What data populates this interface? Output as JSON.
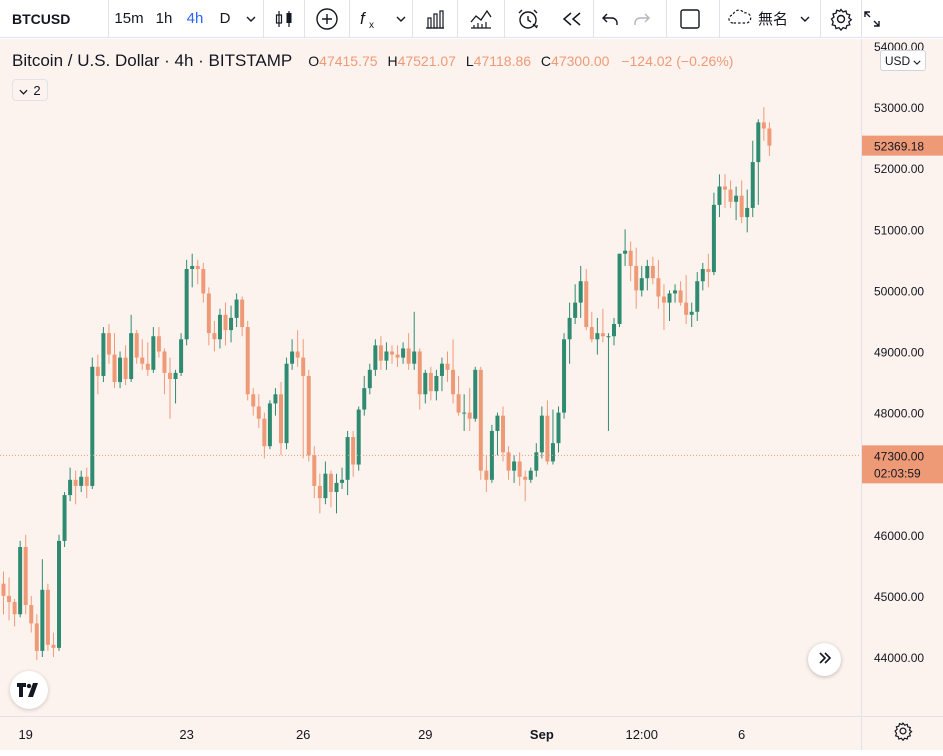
{
  "toolbar": {
    "symbol": "BTCUSD",
    "intervals": [
      "15m",
      "1h",
      "4h",
      "D"
    ],
    "active_interval": "4h",
    "layout_name": "無名"
  },
  "legend": {
    "title": "Bitcoin / U.S. Dollar · 4h · BITSTAMP",
    "o_label": "O",
    "o": "47415.75",
    "h_label": "H",
    "h": "47521.07",
    "l_label": "L",
    "l": "47118.86",
    "c_label": "C",
    "c": "47300.00",
    "change": "−124.02 (−0.26%)",
    "collapsed_count": "2"
  },
  "currency": "USD",
  "price_labels": {
    "last": "52369.18",
    "crosshair_price": "47300.00",
    "countdown": "02:03:59"
  },
  "colors": {
    "up": "#26a69a",
    "up_dark": "#2e8b72",
    "down": "#ef9a77",
    "background": "#fdf3ee",
    "active": "#2962ff"
  },
  "chart_data": {
    "type": "candlestick",
    "title": "Bitcoin / U.S. Dollar",
    "interval": "4h",
    "exchange": "BITSTAMP",
    "ylim": [
      43000,
      54300
    ],
    "y_ticks": [
      "54000.00",
      "53000.00",
      "52000.00",
      "51000.00",
      "50000.00",
      "49000.00",
      "48000.00",
      "47000.00",
      "46000.00",
      "45000.00",
      "44000.00"
    ],
    "x_ticks": [
      "19",
      "23",
      "26",
      "29",
      "Sep",
      "12:00",
      "6"
    ],
    "x_tick_bar_index": [
      4,
      33,
      54,
      76,
      97,
      115,
      133
    ],
    "candles": [
      [
        45200,
        45400,
        44700,
        45000
      ],
      [
        45000,
        45300,
        44600,
        44900
      ],
      [
        44900,
        44950,
        44500,
        44700
      ],
      [
        44700,
        45900,
        44650,
        45800
      ],
      [
        45800,
        46000,
        44700,
        44850
      ],
      [
        44850,
        45000,
        44400,
        44550
      ],
      [
        44550,
        44700,
        43950,
        44100
      ],
      [
        44100,
        45600,
        44000,
        45100
      ],
      [
        45100,
        45200,
        44100,
        44200
      ],
      [
        44200,
        44400,
        44000,
        44150
      ],
      [
        44150,
        46000,
        44100,
        45900
      ],
      [
        45900,
        46700,
        45800,
        46650
      ],
      [
        46650,
        47100,
        46550,
        46900
      ],
      [
        46900,
        47050,
        46500,
        46800
      ],
      [
        46800,
        47050,
        46700,
        46950
      ],
      [
        46950,
        47100,
        46600,
        46800
      ],
      [
        46800,
        48900,
        46750,
        48750
      ],
      [
        48750,
        48950,
        48300,
        48600
      ],
      [
        48600,
        49400,
        48500,
        49300
      ],
      [
        49300,
        49450,
        48800,
        48950
      ],
      [
        48950,
        49300,
        48400,
        48500
      ],
      [
        48500,
        49000,
        48400,
        48900
      ],
      [
        48900,
        49100,
        48450,
        48550
      ],
      [
        48550,
        49600,
        48500,
        49300
      ],
      [
        49300,
        49350,
        48800,
        48900
      ],
      [
        48900,
        49200,
        48700,
        48800
      ],
      [
        48800,
        49150,
        48600,
        48700
      ],
      [
        48700,
        49400,
        48650,
        49250
      ],
      [
        49250,
        49400,
        48900,
        49000
      ],
      [
        49000,
        49050,
        48300,
        48650
      ],
      [
        48650,
        48900,
        47900,
        48550
      ],
      [
        48550,
        48700,
        48150,
        48650
      ],
      [
        48650,
        49300,
        48600,
        49200
      ],
      [
        49200,
        50500,
        49100,
        50350
      ],
      [
        50350,
        50600,
        50050,
        50400
      ],
      [
        50400,
        50500,
        50100,
        50350
      ],
      [
        50350,
        50450,
        49800,
        49950
      ],
      [
        49950,
        50050,
        49100,
        49300
      ],
      [
        49300,
        49500,
        49000,
        49200
      ],
      [
        49200,
        49700,
        49050,
        49600
      ],
      [
        49600,
        49800,
        49100,
        49350
      ],
      [
        49350,
        49750,
        49150,
        49550
      ],
      [
        49550,
        49950,
        49400,
        49850
      ],
      [
        49850,
        49900,
        49250,
        49400
      ],
      [
        49400,
        49500,
        48200,
        48300
      ],
      [
        48300,
        48400,
        47950,
        48100
      ],
      [
        48100,
        48300,
        47750,
        47900
      ],
      [
        47900,
        48000,
        47250,
        47450
      ],
      [
        47450,
        48200,
        47400,
        48150
      ],
      [
        48150,
        48400,
        47950,
        48300
      ],
      [
        48300,
        48500,
        47300,
        47500
      ],
      [
        47500,
        48900,
        47400,
        48800
      ],
      [
        48800,
        49200,
        48700,
        49000
      ],
      [
        49000,
        49350,
        48750,
        48900
      ],
      [
        48900,
        49200,
        47250,
        48600
      ],
      [
        48600,
        48700,
        47200,
        47300
      ],
      [
        47300,
        47450,
        46600,
        46800
      ],
      [
        46800,
        47000,
        46350,
        46600
      ],
      [
        46600,
        47200,
        46500,
        47000
      ],
      [
        47000,
        47050,
        46450,
        46700
      ],
      [
        46700,
        47000,
        46350,
        46850
      ],
      [
        46850,
        47100,
        46750,
        46900
      ],
      [
        46900,
        47700,
        46650,
        47600
      ],
      [
        47600,
        47700,
        46950,
        47150
      ],
      [
        47150,
        48100,
        47050,
        48050
      ],
      [
        48050,
        48600,
        47950,
        48400
      ],
      [
        48400,
        48800,
        48300,
        48700
      ],
      [
        48700,
        49200,
        48600,
        49100
      ],
      [
        49100,
        49250,
        48700,
        48850
      ],
      [
        48850,
        49150,
        48700,
        49000
      ],
      [
        49000,
        49100,
        48800,
        48950
      ],
      [
        48950,
        49100,
        48750,
        48900
      ],
      [
        48900,
        49150,
        48800,
        49050
      ],
      [
        49050,
        49300,
        48700,
        48800
      ],
      [
        48800,
        49650,
        48700,
        49000
      ],
      [
        49000,
        49050,
        48050,
        48300
      ],
      [
        48300,
        48700,
        48150,
        48650
      ],
      [
        48650,
        48750,
        48200,
        48350
      ],
      [
        48350,
        48700,
        48200,
        48600
      ],
      [
        48600,
        48900,
        48350,
        48800
      ],
      [
        48800,
        49000,
        48500,
        48700
      ],
      [
        48700,
        49200,
        48150,
        48300
      ],
      [
        48300,
        48600,
        47950,
        48000
      ],
      [
        48000,
        48300,
        47700,
        48000
      ],
      [
        48000,
        48400,
        47700,
        47900
      ],
      [
        47900,
        48750,
        47850,
        48700
      ],
      [
        48700,
        48750,
        46900,
        47050
      ],
      [
        47050,
        47300,
        46700,
        46900
      ],
      [
        46900,
        47800,
        46850,
        47700
      ],
      [
        47700,
        48000,
        47300,
        47950
      ],
      [
        47950,
        48100,
        47200,
        47350
      ],
      [
        47350,
        47450,
        46900,
        47050
      ],
      [
        47050,
        47300,
        46850,
        47200
      ],
      [
        47200,
        47350,
        46800,
        46950
      ],
      [
        46950,
        47050,
        46550,
        46900
      ],
      [
        46900,
        47100,
        46850,
        47050
      ],
      [
        47050,
        47500,
        46950,
        47350
      ],
      [
        47350,
        48100,
        47250,
        47950
      ],
      [
        47950,
        48200,
        47150,
        47200
      ],
      [
        47200,
        48050,
        47150,
        47500
      ],
      [
        47500,
        48100,
        47350,
        48000
      ],
      [
        48000,
        49300,
        47900,
        49200
      ],
      [
        49200,
        49800,
        48800,
        49550
      ],
      [
        49550,
        50100,
        49450,
        49800
      ],
      [
        49800,
        50400,
        49550,
        50150
      ],
      [
        50150,
        50350,
        49350,
        49400
      ],
      [
        49400,
        49650,
        49150,
        49200
      ],
      [
        49200,
        49550,
        48950,
        49300
      ],
      [
        49300,
        49700,
        49150,
        49250
      ],
      [
        49250,
        49300,
        47700,
        49250
      ],
      [
        49250,
        49550,
        49100,
        49450
      ],
      [
        49450,
        50600,
        49400,
        50600
      ],
      [
        50600,
        51000,
        50400,
        50650
      ],
      [
        50650,
        50800,
        50150,
        50400
      ],
      [
        50400,
        50700,
        49700,
        50000
      ],
      [
        50000,
        50400,
        49900,
        50200
      ],
      [
        50200,
        50500,
        50000,
        50400
      ],
      [
        50400,
        50550,
        50100,
        50200
      ],
      [
        50200,
        50500,
        49700,
        49900
      ],
      [
        49900,
        50100,
        49350,
        49800
      ],
      [
        49800,
        50000,
        49500,
        49950
      ],
      [
        49950,
        50100,
        49800,
        50000
      ],
      [
        50000,
        50150,
        49750,
        49800
      ],
      [
        49800,
        50250,
        49450,
        49600
      ],
      [
        49600,
        49800,
        49400,
        49650
      ],
      [
        49650,
        50300,
        49500,
        50150
      ],
      [
        50150,
        50450,
        50000,
        50350
      ],
      [
        50350,
        50600,
        50050,
        50300
      ],
      [
        50300,
        51600,
        50250,
        51400
      ],
      [
        51400,
        51900,
        51200,
        51700
      ],
      [
        51700,
        51900,
        51350,
        51650
      ],
      [
        51650,
        51800,
        51350,
        51450
      ],
      [
        51450,
        51700,
        51150,
        51550
      ],
      [
        51550,
        51800,
        51100,
        51200
      ],
      [
        51200,
        51650,
        50950,
        51350
      ],
      [
        51350,
        52450,
        51200,
        52100
      ],
      [
        52100,
        52800,
        51400,
        52750
      ],
      [
        52750,
        53000,
        52450,
        52650
      ],
      [
        52650,
        52750,
        52200,
        52369
      ]
    ],
    "current_price": 47300.0,
    "last_price": 52369.18,
    "grid": false
  }
}
